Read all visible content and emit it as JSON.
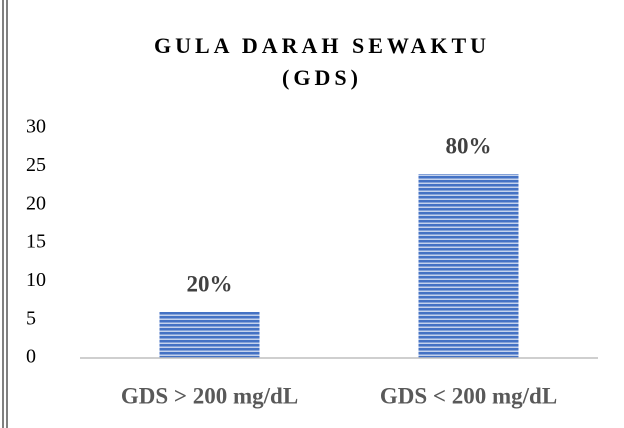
{
  "chart_data": {
    "type": "bar",
    "title": [
      "GULA DARAH SEWAKTU",
      "(GDS)"
    ],
    "categories": [
      "GDS > 200 mg/dL",
      "GDS < 200 mg/dL"
    ],
    "values": [
      6,
      24
    ],
    "value_labels": [
      "20%",
      "80%"
    ],
    "color": "#4472c4",
    "ylim": [
      0,
      30
    ],
    "yticks": [
      0,
      5,
      10,
      15,
      20,
      25,
      30
    ],
    "grid": false
  }
}
